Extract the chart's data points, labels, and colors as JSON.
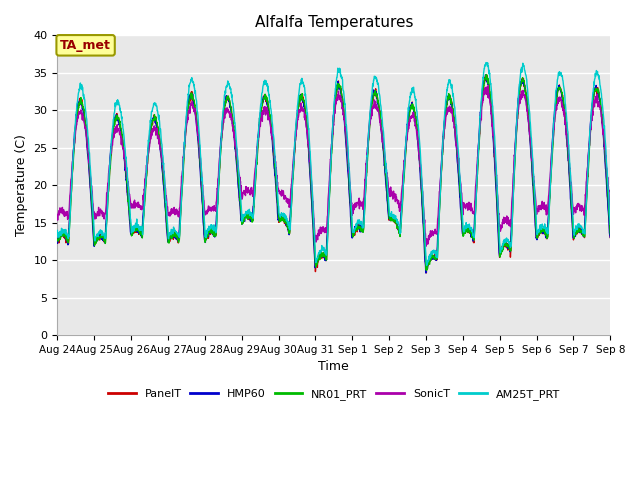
{
  "title": "Alfalfa Temperatures",
  "xlabel": "Time",
  "ylabel": "Temperature (C)",
  "ylim": [
    0,
    40
  ],
  "yticks": [
    0,
    5,
    10,
    15,
    20,
    25,
    30,
    35,
    40
  ],
  "annotation_text": "TA_met",
  "annotation_color": "#990000",
  "annotation_bg": "#ffff99",
  "annotation_border": "#999900",
  "colors": {
    "PanelT": "#cc0000",
    "HMP60": "#0000cc",
    "NR01_PRT": "#00bb00",
    "SonicT": "#aa00aa",
    "AM25T_PRT": "#00cccc"
  },
  "legend_labels": [
    "PanelT",
    "HMP60",
    "NR01_PRT",
    "SonicT",
    "AM25T_PRT"
  ],
  "plot_bg": "#e8e8e8",
  "fig_bg": "#ffffff",
  "grid_color": "#ffffff",
  "tick_labels": [
    "Aug 24",
    "Aug 25",
    "Aug 26",
    "Aug 27",
    "Aug 28",
    "Aug 29",
    "Aug 30",
    "Aug 31",
    "Sep 1",
    "Sep 2",
    "Sep 3",
    "Sep 4",
    "Sep 5",
    "Sep 6",
    "Sep 7",
    "Sep 8"
  ],
  "day_peaks": [
    31.5,
    31.0,
    28.0,
    29.5,
    33.5,
    30.5,
    32.5,
    31.5,
    34.5,
    31.0,
    30.5,
    32.5,
    35.5,
    33.0
  ],
  "day_mins": [
    12.5,
    12.0,
    13.5,
    12.5,
    12.5,
    15.0,
    15.5,
    9.0,
    13.0,
    15.5,
    8.5,
    13.5,
    10.5,
    13.0
  ]
}
